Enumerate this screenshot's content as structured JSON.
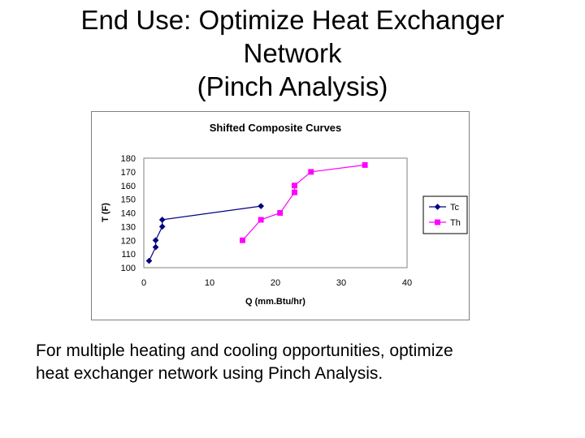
{
  "slide": {
    "title_lines": [
      "End Use: Optimize Heat Exchanger",
      "Network",
      "(Pinch Analysis)"
    ],
    "caption_lines": [
      "For multiple heating and cooling opportunities, optimize",
      "heat exchanger network using Pinch Analysis."
    ]
  },
  "chart_data": {
    "type": "line",
    "title": "Shifted Composite Curves",
    "xlabel": "Q (mm.Btu/hr)",
    "ylabel": "T (F)",
    "xlim": [
      0,
      40
    ],
    "ylim": [
      100,
      180
    ],
    "xticks": [
      "0",
      "10",
      "20",
      "30",
      "40"
    ],
    "yticks": [
      "100",
      "110",
      "120",
      "130",
      "140",
      "150",
      "160",
      "170",
      "180"
    ],
    "grid": false,
    "legend_position": "right",
    "series": [
      {
        "name": "Tc",
        "color": "#000080",
        "marker": "diamond",
        "points": [
          [
            0.8,
            105
          ],
          [
            1.8,
            115
          ],
          [
            1.8,
            120
          ],
          [
            2.8,
            130
          ],
          [
            2.8,
            135
          ],
          [
            17.8,
            145
          ]
        ]
      },
      {
        "name": "Th",
        "color": "#ff00ff",
        "marker": "square",
        "points": [
          [
            15,
            120
          ],
          [
            17.8,
            135
          ],
          [
            20.7,
            140
          ],
          [
            22.9,
            155
          ],
          [
            22.9,
            160
          ],
          [
            25.4,
            170
          ],
          [
            33.6,
            175
          ]
        ]
      }
    ]
  }
}
